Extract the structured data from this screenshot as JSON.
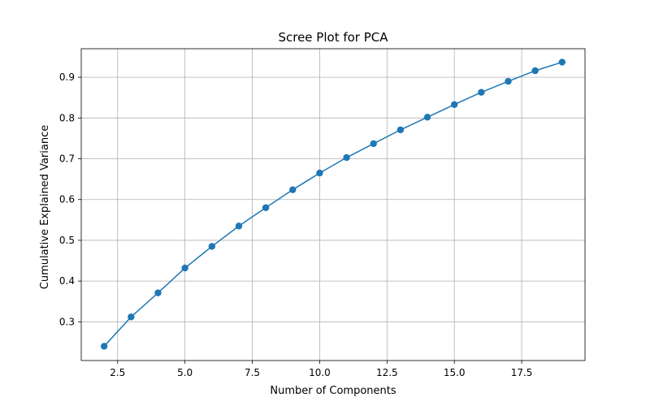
{
  "chart_data": {
    "type": "line",
    "title": "Scree Plot for PCA",
    "xlabel": "Number of Components",
    "ylabel": "Cumulative Explained Variance",
    "xlim": [
      1.15,
      19.85
    ],
    "ylim": [
      0.205,
      0.97
    ],
    "x_ticks": [
      2.5,
      5.0,
      7.5,
      10.0,
      12.5,
      15.0,
      17.5
    ],
    "x_tick_labels": [
      "2.5",
      "5.0",
      "7.5",
      "10.0",
      "12.5",
      "15.0",
      "17.5"
    ],
    "y_ticks": [
      0.3,
      0.4,
      0.5,
      0.6,
      0.7,
      0.8,
      0.9
    ],
    "y_tick_labels": [
      "0.3",
      "0.4",
      "0.5",
      "0.6",
      "0.7",
      "0.8",
      "0.9"
    ],
    "grid": true,
    "marker": "circle",
    "colors": {
      "series": "#1f77b4",
      "grid": "#b0b0b0",
      "axes": "#000000"
    },
    "series": [
      {
        "x": [
          2,
          3,
          4,
          5,
          6,
          7,
          8,
          9,
          10,
          11,
          12,
          13,
          14,
          15,
          16,
          17,
          18,
          19
        ],
        "values": [
          0.24,
          0.312,
          0.371,
          0.432,
          0.485,
          0.535,
          0.58,
          0.624,
          0.665,
          0.703,
          0.737,
          0.771,
          0.802,
          0.833,
          0.863,
          0.89,
          0.916,
          0.937
        ]
      }
    ]
  }
}
